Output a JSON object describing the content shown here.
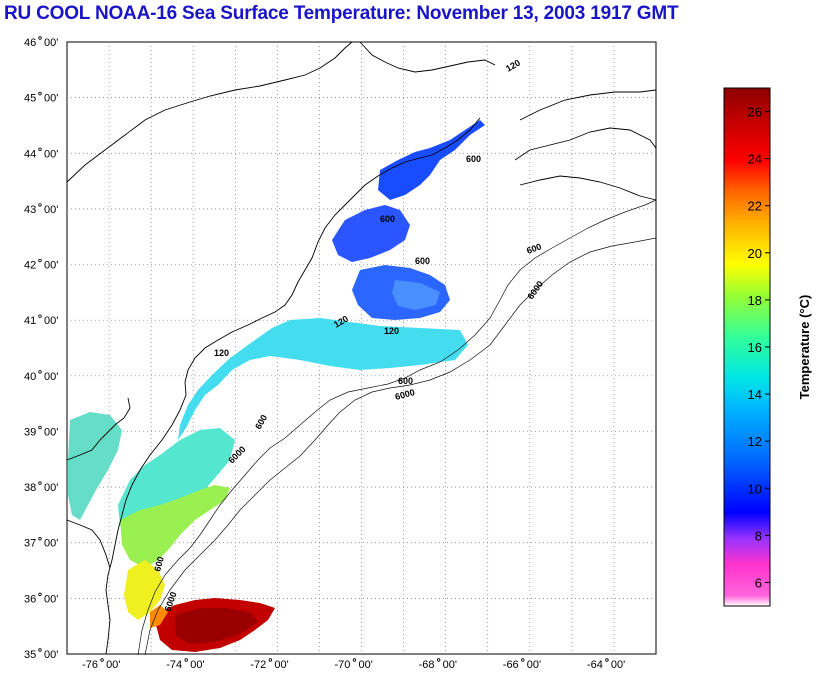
{
  "title": "RU COOL  NOAA-16  Sea Surface Temperature:  November 13, 2003 1917 GMT",
  "map": {
    "lat_labels": [
      {
        "deg": "46",
        "min": "00'"
      },
      {
        "deg": "45",
        "min": "00'"
      },
      {
        "deg": "44",
        "min": "00'"
      },
      {
        "deg": "43",
        "min": "00'"
      },
      {
        "deg": "42",
        "min": "00'"
      },
      {
        "deg": "41",
        "min": "00'"
      },
      {
        "deg": "40",
        "min": "00'"
      },
      {
        "deg": "39",
        "min": "00'"
      },
      {
        "deg": "38",
        "min": "00'"
      },
      {
        "deg": "37",
        "min": "00'"
      },
      {
        "deg": "36",
        "min": "00'"
      },
      {
        "deg": "35",
        "min": "00'"
      }
    ],
    "lon_labels": [
      {
        "deg": "-76",
        "min": "00'"
      },
      {
        "deg": "-74",
        "min": "00'"
      },
      {
        "deg": "-72",
        "min": "00'"
      },
      {
        "deg": "-70",
        "min": "00'"
      },
      {
        "deg": "-68",
        "min": "00'"
      },
      {
        "deg": "-66",
        "min": "00'"
      },
      {
        "deg": "-64",
        "min": "00'"
      }
    ],
    "lat_range": [
      35,
      46
    ],
    "lon_range": [
      -77,
      -63
    ],
    "contour_labels": [
      "120",
      "600",
      "6000"
    ],
    "grid": "dotted"
  },
  "colorbar": {
    "title": "Temperature (°C)",
    "ticks": [
      "6",
      "8",
      "10",
      "12",
      "14",
      "16",
      "18",
      "20",
      "22",
      "24",
      "26"
    ],
    "min": 5,
    "max": 27,
    "colors": [
      "#ffffff",
      "#ff33cc",
      "#9933ff",
      "#0000ff",
      "#0066ff",
      "#00ccff",
      "#00ffcc",
      "#66ff66",
      "#ffff00",
      "#ff9900",
      "#ff0000",
      "#990000"
    ]
  }
}
